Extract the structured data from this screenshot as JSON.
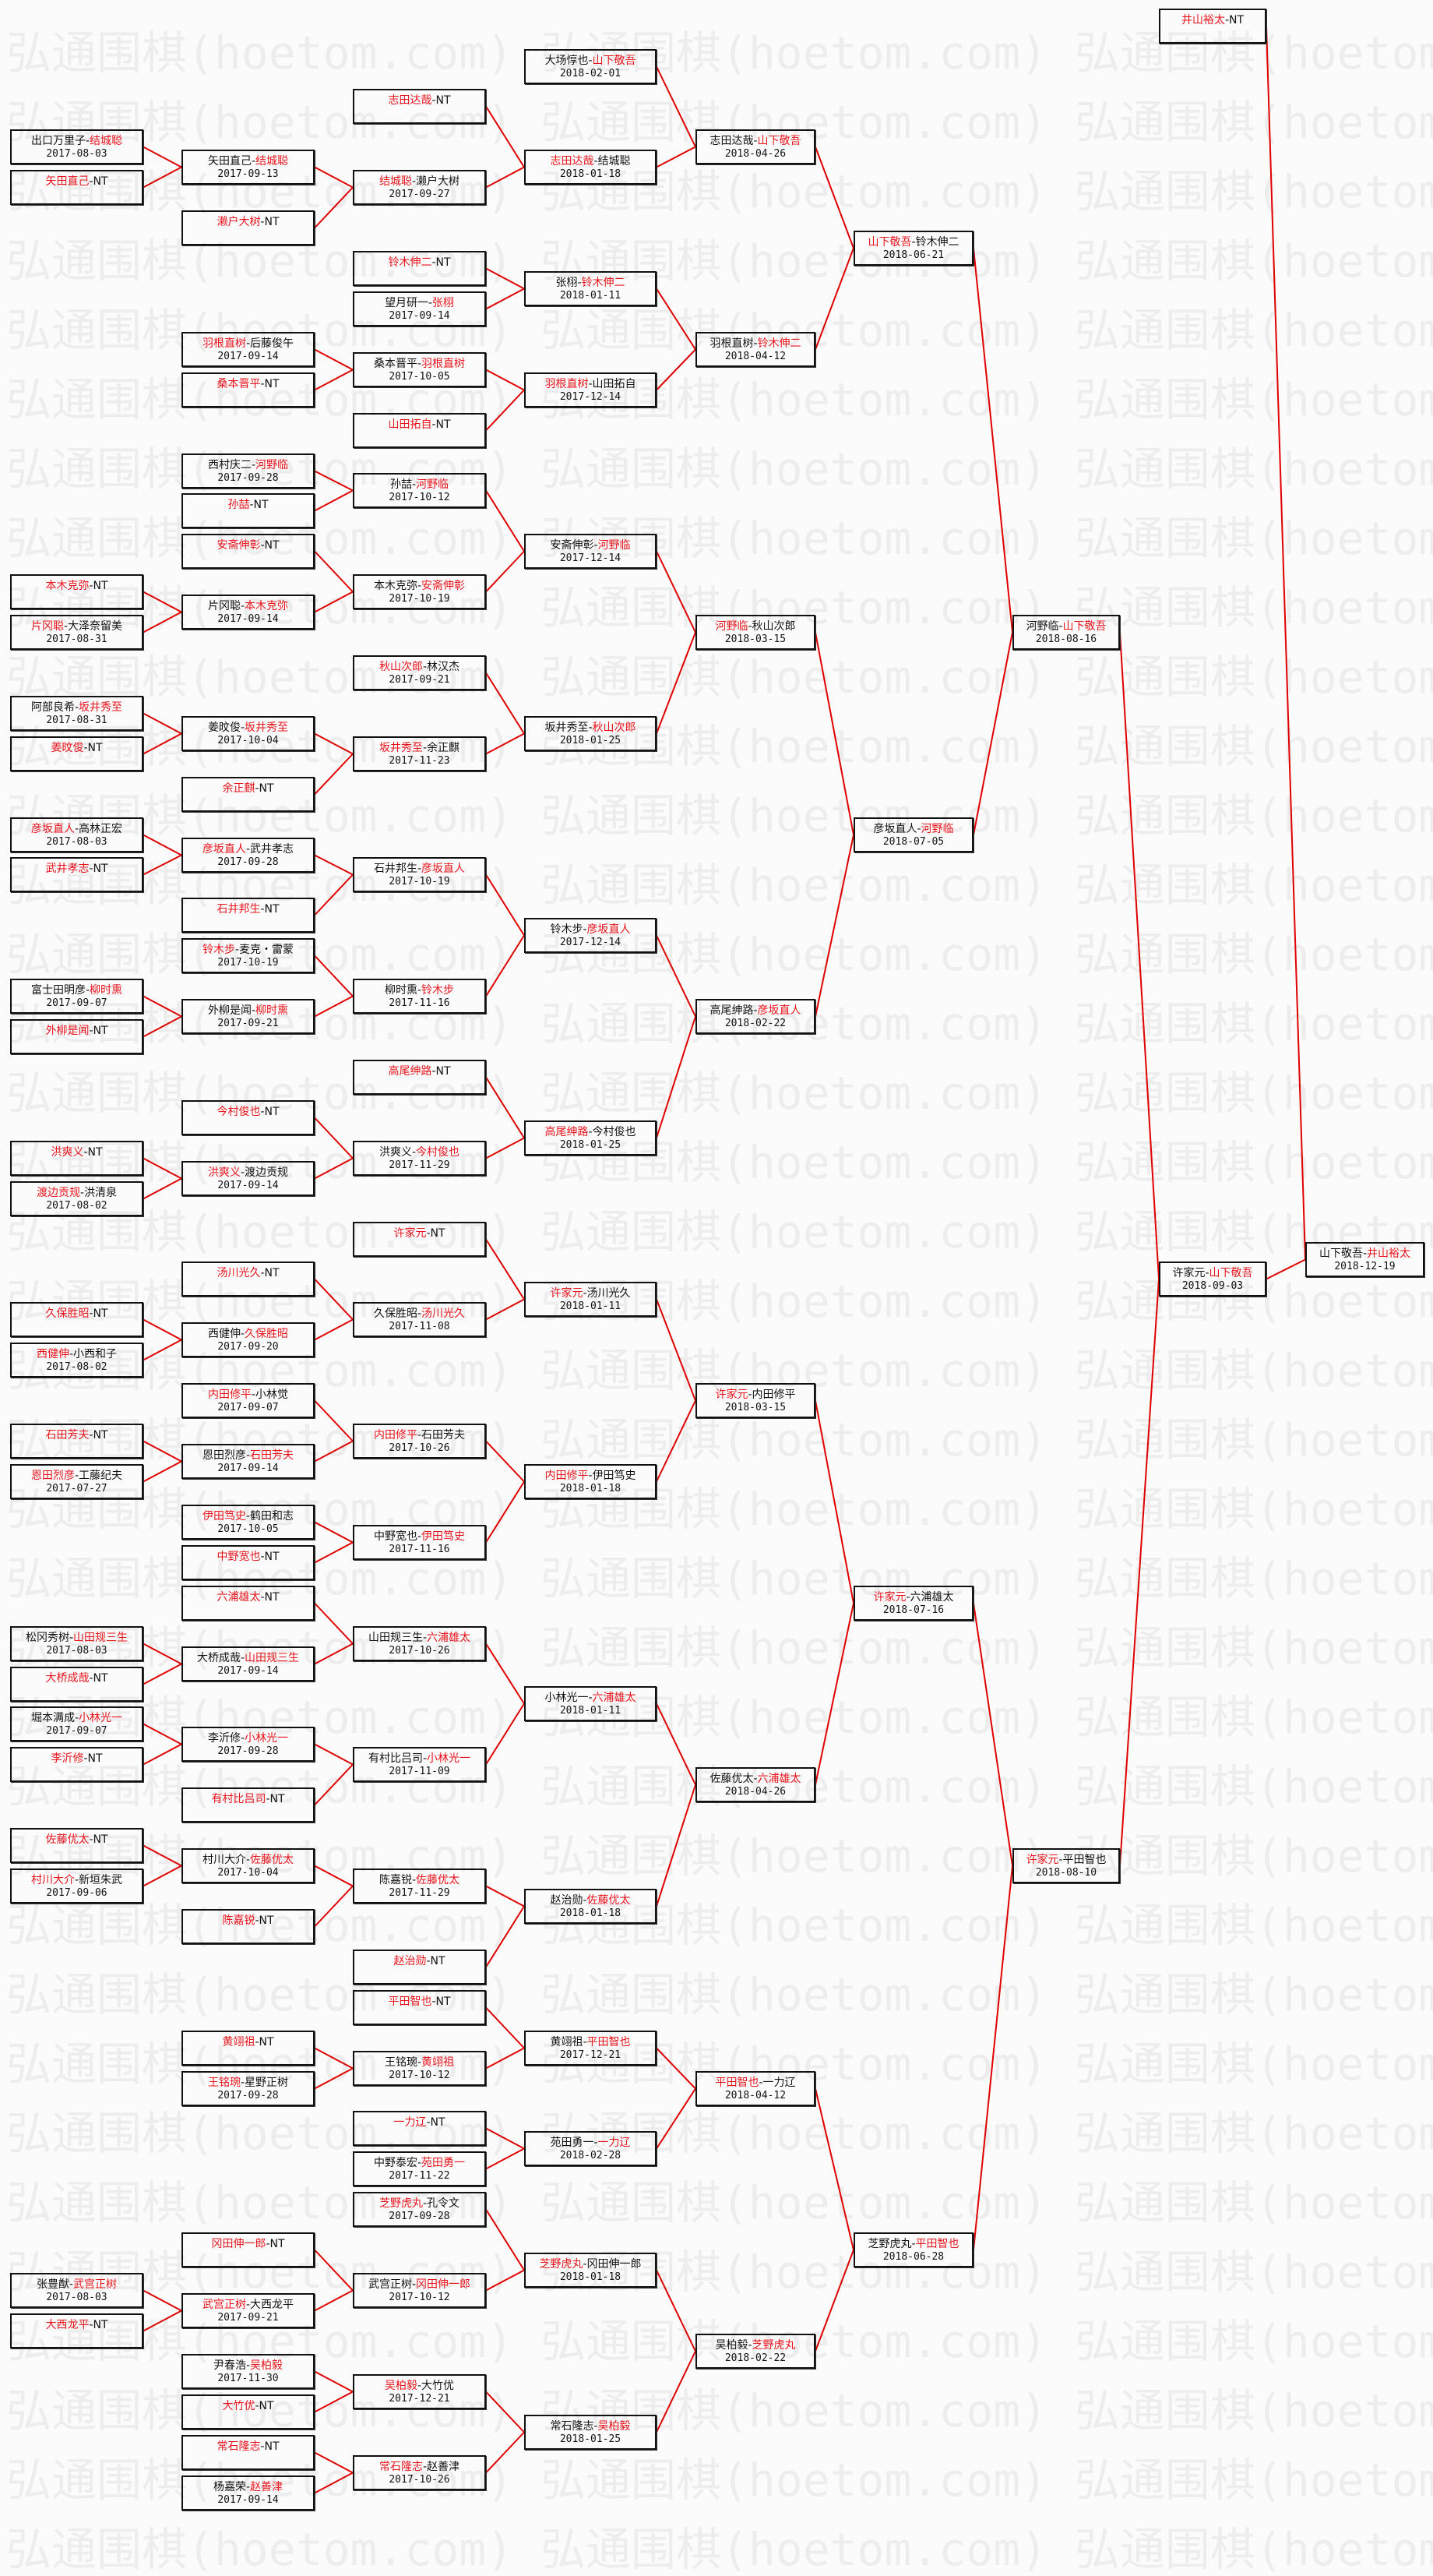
{
  "watermark": "弘通围棋(hoetom.com) 弘通围棋(hoetom.com) 弘通围棋(hoetom.com)",
  "separator": "-",
  "colors": {
    "winner": "#e8141c",
    "line": "#e00000",
    "text": "#111111"
  },
  "rounds": [
    [
      {
        "p1": "出口万里子",
        "p2": "结城聪",
        "date": "2017-08-03",
        "winner": 2
      },
      {
        "p1": "矢田直己",
        "p2": "NT",
        "date": "",
        "winner": 1
      },
      {
        "p1": "本木克弥",
        "p2": "NT",
        "date": "",
        "winner": 1
      },
      {
        "p1": "片冈聪",
        "p2": "大泽奈留美",
        "date": "2017-08-31",
        "winner": 1
      },
      {
        "p1": "阿部良希",
        "p2": "坂井秀至",
        "date": "2017-08-31",
        "winner": 2
      },
      {
        "p1": "姜旼俊",
        "p2": "NT",
        "date": "",
        "winner": 1
      },
      {
        "p1": "彦坂直人",
        "p2": "高林正宏",
        "date": "2017-08-03",
        "winner": 1
      },
      {
        "p1": "武井孝志",
        "p2": "NT",
        "date": "",
        "winner": 1
      },
      {
        "p1": "富士田明彦",
        "p2": "柳时熏",
        "date": "2017-09-07",
        "winner": 2
      },
      {
        "p1": "外柳是闻",
        "p2": "NT",
        "date": "",
        "winner": 1
      },
      {
        "p1": "洪爽义",
        "p2": "NT",
        "date": "",
        "winner": 1
      },
      {
        "p1": "渡边贡规",
        "p2": "洪清泉",
        "date": "2017-08-02",
        "winner": 1
      },
      {
        "p1": "久保胜昭",
        "p2": "NT",
        "date": "",
        "winner": 1
      },
      {
        "p1": "西健伸",
        "p2": "小西和子",
        "date": "2017-08-02",
        "winner": 1
      },
      {
        "p1": "石田芳夫",
        "p2": "NT",
        "date": "",
        "winner": 1
      },
      {
        "p1": "恩田烈彦",
        "p2": "工藤纪夫",
        "date": "2017-07-27",
        "winner": 1
      },
      {
        "p1": "松冈秀树",
        "p2": "山田规三生",
        "date": "2017-08-03",
        "winner": 2
      },
      {
        "p1": "大桥成哉",
        "p2": "NT",
        "date": "",
        "winner": 1
      },
      {
        "p1": "堀本满成",
        "p2": "小林光一",
        "date": "2017-09-07",
        "winner": 2
      },
      {
        "p1": "李沂修",
        "p2": "NT",
        "date": "",
        "winner": 1
      },
      {
        "p1": "佐藤优太",
        "p2": "NT",
        "date": "",
        "winner": 1
      },
      {
        "p1": "村川大介",
        "p2": "新垣朱武",
        "date": "2017-09-06",
        "winner": 1
      },
      {
        "p1": "张豊猷",
        "p2": "武宫正树",
        "date": "2017-08-03",
        "winner": 2
      },
      {
        "p1": "大西龙平",
        "p2": "NT",
        "date": "",
        "winner": 1
      }
    ],
    [
      {
        "p1": "矢田直己",
        "p2": "结城聪",
        "date": "2017-09-13",
        "winner": 2
      },
      {
        "p1": "濑户大树",
        "p2": "NT",
        "date": "",
        "winner": 1
      },
      {
        "p1": "羽根直树",
        "p2": "后藤俊午",
        "date": "2017-09-14",
        "winner": 1
      },
      {
        "p1": "桑本晋平",
        "p2": "NT",
        "date": "",
        "winner": 1
      },
      {
        "p1": "西村庆二",
        "p2": "河野临",
        "date": "2017-09-28",
        "winner": 2
      },
      {
        "p1": "孙喆",
        "p2": "NT",
        "date": "",
        "winner": 1
      },
      {
        "p1": "安斋伸彰",
        "p2": "NT",
        "date": "",
        "winner": 1
      },
      {
        "p1": "片冈聪",
        "p2": "本木克弥",
        "date": "2017-09-14",
        "winner": 2
      },
      {
        "p1": "姜旼俊",
        "p2": "坂井秀至",
        "date": "2017-10-04",
        "winner": 2
      },
      {
        "p1": "余正麒",
        "p2": "NT",
        "date": "",
        "winner": 1
      },
      {
        "p1": "彦坂直人",
        "p2": "武井孝志",
        "date": "2017-09-28",
        "winner": 1
      },
      {
        "p1": "石井邦生",
        "p2": "NT",
        "date": "",
        "winner": 1
      },
      {
        "p1": "铃木步",
        "p2": "麦克・雷蒙",
        "date": "2017-10-19",
        "winner": 1
      },
      {
        "p1": "外柳是闻",
        "p2": "柳时熏",
        "date": "2017-09-21",
        "winner": 2
      },
      {
        "p1": "今村俊也",
        "p2": "NT",
        "date": "",
        "winner": 1
      },
      {
        "p1": "洪爽义",
        "p2": "渡边贡规",
        "date": "2017-09-14",
        "winner": 1
      },
      {
        "p1": "汤川光久",
        "p2": "NT",
        "date": "",
        "winner": 1
      },
      {
        "p1": "西健伸",
        "p2": "久保胜昭",
        "date": "2017-09-20",
        "winner": 2
      },
      {
        "p1": "内田修平",
        "p2": "小林觉",
        "date": "2017-09-07",
        "winner": 1
      },
      {
        "p1": "恩田烈彦",
        "p2": "石田芳夫",
        "date": "2017-09-14",
        "winner": 2
      },
      {
        "p1": "伊田笃史",
        "p2": "鹤田和志",
        "date": "2017-10-05",
        "winner": 1
      },
      {
        "p1": "中野宽也",
        "p2": "NT",
        "date": "",
        "winner": 1
      },
      {
        "p1": "六浦雄太",
        "p2": "NT",
        "date": "",
        "winner": 1
      },
      {
        "p1": "大桥成哉",
        "p2": "山田规三生",
        "date": "2017-09-14",
        "winner": 2
      },
      {
        "p1": "李沂修",
        "p2": "小林光一",
        "date": "2017-09-28",
        "winner": 2
      },
      {
        "p1": "有村比吕司",
        "p2": "NT",
        "date": "",
        "winner": 1
      },
      {
        "p1": "村川大介",
        "p2": "佐藤优太",
        "date": "2017-10-04",
        "winner": 2
      },
      {
        "p1": "陈嘉锐",
        "p2": "NT",
        "date": "",
        "winner": 1
      },
      {
        "p1": "黄翊祖",
        "p2": "NT",
        "date": "",
        "winner": 1
      },
      {
        "p1": "王铭琬",
        "p2": "星野正树",
        "date": "2017-09-28",
        "winner": 1
      },
      {
        "p1": "冈田伸一郎",
        "p2": "NT",
        "date": "",
        "winner": 1
      },
      {
        "p1": "武宫正树",
        "p2": "大西龙平",
        "date": "2017-09-21",
        "winner": 1
      },
      {
        "p1": "尹春浩",
        "p2": "吴柏毅",
        "date": "2017-11-30",
        "winner": 2
      },
      {
        "p1": "大竹优",
        "p2": "NT",
        "date": "",
        "winner": 1
      },
      {
        "p1": "常石隆志",
        "p2": "NT",
        "date": "",
        "winner": 1
      },
      {
        "p1": "杨嘉荣",
        "p2": "赵善津",
        "date": "2017-09-14",
        "winner": 2
      }
    ],
    [
      {
        "p1": "志田达哉",
        "p2": "NT",
        "date": "",
        "winner": 1
      },
      {
        "p1": "结城聪",
        "p2": "濑户大树",
        "date": "2017-09-27",
        "winner": 1
      },
      {
        "p1": "铃木伸二",
        "p2": "NT",
        "date": "",
        "winner": 1
      },
      {
        "p1": "望月研一",
        "p2": "张栩",
        "date": "2017-09-14",
        "winner": 2
      },
      {
        "p1": "桑本晋平",
        "p2": "羽根直树",
        "date": "2017-10-05",
        "winner": 2
      },
      {
        "p1": "山田拓自",
        "p2": "NT",
        "date": "",
        "winner": 1
      },
      {
        "p1": "孙喆",
        "p2": "河野临",
        "date": "2017-10-12",
        "winner": 2
      },
      {
        "p1": "本木克弥",
        "p2": "安斋伸彰",
        "date": "2017-10-19",
        "winner": 2
      },
      {
        "p1": "秋山次郎",
        "p2": "林汉杰",
        "date": "2017-09-21",
        "winner": 1
      },
      {
        "p1": "坂井秀至",
        "p2": "余正麒",
        "date": "2017-11-23",
        "winner": 1
      },
      {
        "p1": "石井邦生",
        "p2": "彦坂直人",
        "date": "2017-10-19",
        "winner": 2
      },
      {
        "p1": "柳时熏",
        "p2": "铃木步",
        "date": "2017-11-16",
        "winner": 2
      },
      {
        "p1": "高尾绅路",
        "p2": "NT",
        "date": "",
        "winner": 1
      },
      {
        "p1": "洪爽义",
        "p2": "今村俊也",
        "date": "2017-11-29",
        "winner": 2
      },
      {
        "p1": "许家元",
        "p2": "NT",
        "date": "",
        "winner": 1
      },
      {
        "p1": "久保胜昭",
        "p2": "汤川光久",
        "date": "2017-11-08",
        "winner": 2
      },
      {
        "p1": "内田修平",
        "p2": "石田芳夫",
        "date": "2017-10-26",
        "winner": 1
      },
      {
        "p1": "中野宽也",
        "p2": "伊田笃史",
        "date": "2017-11-16",
        "winner": 2
      },
      {
        "p1": "山田规三生",
        "p2": "六浦雄太",
        "date": "2017-10-26",
        "winner": 2
      },
      {
        "p1": "有村比吕司",
        "p2": "小林光一",
        "date": "2017-11-09",
        "winner": 2
      },
      {
        "p1": "陈嘉锐",
        "p2": "佐藤优太",
        "date": "2017-11-29",
        "winner": 2
      },
      {
        "p1": "赵治勋",
        "p2": "NT",
        "date": "",
        "winner": 1
      },
      {
        "p1": "平田智也",
        "p2": "NT",
        "date": "",
        "winner": 1
      },
      {
        "p1": "王铭琬",
        "p2": "黄翊祖",
        "date": "2017-10-12",
        "winner": 2
      },
      {
        "p1": "一力辽",
        "p2": "NT",
        "date": "",
        "winner": 1
      },
      {
        "p1": "中野泰宏",
        "p2": "苑田勇一",
        "date": "2017-11-22",
        "winner": 2
      },
      {
        "p1": "芝野虎丸",
        "p2": "孔令文",
        "date": "2017-09-28",
        "winner": 1
      },
      {
        "p1": "武宫正树",
        "p2": "冈田伸一郎",
        "date": "2017-10-12",
        "winner": 2
      },
      {
        "p1": "吴柏毅",
        "p2": "大竹优",
        "date": "2017-12-21",
        "winner": 1
      },
      {
        "p1": "常石隆志",
        "p2": "赵善津",
        "date": "2017-10-26",
        "winner": 1
      }
    ],
    [
      {
        "p1": "大场惇也",
        "p2": "山下敬吾",
        "date": "2018-02-01",
        "winner": 2
      },
      {
        "p1": "志田达哉",
        "p2": "结城聪",
        "date": "2018-01-18",
        "winner": 1
      },
      {
        "p1": "张栩",
        "p2": "铃木伸二",
        "date": "2018-01-11",
        "winner": 2
      },
      {
        "p1": "羽根直树",
        "p2": "山田拓自",
        "date": "2017-12-14",
        "winner": 1
      },
      {
        "p1": "安斋伸彰",
        "p2": "河野临",
        "date": "2017-12-14",
        "winner": 2
      },
      {
        "p1": "坂井秀至",
        "p2": "秋山次郎",
        "date": "2018-01-25",
        "winner": 2
      },
      {
        "p1": "铃木步",
        "p2": "彦坂直人",
        "date": "2017-12-14",
        "winner": 2
      },
      {
        "p1": "高尾绅路",
        "p2": "今村俊也",
        "date": "2018-01-25",
        "winner": 1
      },
      {
        "p1": "许家元",
        "p2": "汤川光久",
        "date": "2018-01-11",
        "winner": 1
      },
      {
        "p1": "内田修平",
        "p2": "伊田笃史",
        "date": "2018-01-18",
        "winner": 1
      },
      {
        "p1": "小林光一",
        "p2": "六浦雄太",
        "date": "2018-01-11",
        "winner": 2
      },
      {
        "p1": "赵治勋",
        "p2": "佐藤优太",
        "date": "2018-01-18",
        "winner": 2
      },
      {
        "p1": "黄翊祖",
        "p2": "平田智也",
        "date": "2017-12-21",
        "winner": 2
      },
      {
        "p1": "苑田勇一",
        "p2": "一力辽",
        "date": "2018-02-28",
        "winner": 2
      },
      {
        "p1": "芝野虎丸",
        "p2": "冈田伸一郎",
        "date": "2018-01-18",
        "winner": 1
      },
      {
        "p1": "常石隆志",
        "p2": "吴柏毅",
        "date": "2018-01-25",
        "winner": 2
      }
    ],
    [
      {
        "p1": "志田达哉",
        "p2": "山下敬吾",
        "date": "2018-04-26",
        "winner": 2
      },
      {
        "p1": "羽根直树",
        "p2": "铃木伸二",
        "date": "2018-04-12",
        "winner": 2
      },
      {
        "p1": "河野临",
        "p2": "秋山次郎",
        "date": "2018-03-15",
        "winner": 1
      },
      {
        "p1": "高尾绅路",
        "p2": "彦坂直人",
        "date": "2018-02-22",
        "winner": 2
      },
      {
        "p1": "许家元",
        "p2": "内田修平",
        "date": "2018-03-15",
        "winner": 1
      },
      {
        "p1": "佐藤优太",
        "p2": "六浦雄太",
        "date": "2018-04-26",
        "winner": 2
      },
      {
        "p1": "平田智也",
        "p2": "一力辽",
        "date": "2018-04-12",
        "winner": 1
      },
      {
        "p1": "吴柏毅",
        "p2": "芝野虎丸",
        "date": "2018-02-22",
        "winner": 2
      }
    ],
    [
      {
        "p1": "山下敬吾",
        "p2": "铃木伸二",
        "date": "2018-06-21",
        "winner": 1
      },
      {
        "p1": "彦坂直人",
        "p2": "河野临",
        "date": "2018-07-05",
        "winner": 2
      },
      {
        "p1": "许家元",
        "p2": "六浦雄太",
        "date": "2018-07-16",
        "winner": 1
      },
      {
        "p1": "芝野虎丸",
        "p2": "平田智也",
        "date": "2018-06-28",
        "winner": 2
      }
    ],
    [
      {
        "p1": "河野临",
        "p2": "山下敬吾",
        "date": "2018-08-16",
        "winner": 2
      },
      {
        "p1": "许家元",
        "p2": "平田智也",
        "date": "2018-08-10",
        "winner": 1
      }
    ],
    [
      {
        "p1": "井山裕太",
        "p2": "NT",
        "date": "",
        "winner": 1
      },
      {
        "p1": "许家元",
        "p2": "山下敬吾",
        "date": "2018-09-03",
        "winner": 2
      }
    ],
    [
      {
        "p1": "山下敬吾",
        "p2": "井山裕太",
        "date": "2018-12-19",
        "winner": 2
      }
    ]
  ]
}
